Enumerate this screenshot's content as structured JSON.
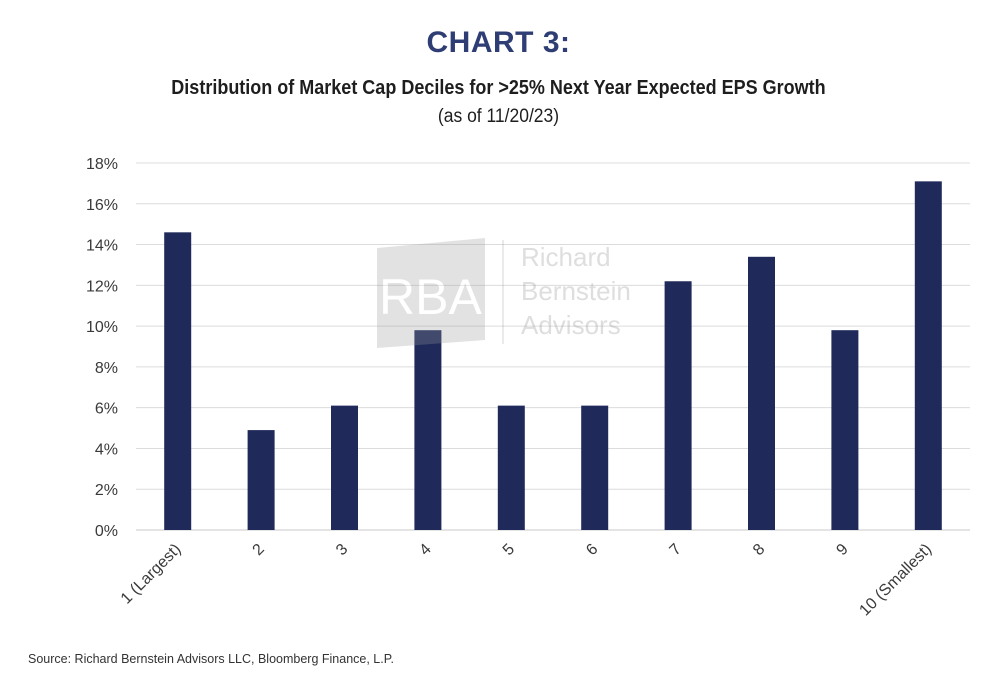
{
  "header": {
    "chart_label": "CHART 3:",
    "title": "Distribution of Market Cap Deciles for >25% Next Year Expected EPS Growth",
    "subtitle": "(as of 11/20/23)"
  },
  "watermark": {
    "logo_text": "RBA",
    "name_lines": [
      "Richard",
      "Bernstein",
      "Advisors"
    ]
  },
  "footer": {
    "source": "Source: Richard Bernstein Advisors LLC, Bloomberg Finance, L.P."
  },
  "chart_data": {
    "type": "bar",
    "title": "Distribution of Market Cap Deciles for >25% Next Year Expected EPS Growth",
    "subtitle": "(as of 11/20/23)",
    "categories": [
      "1 (Largest)",
      "2",
      "3",
      "4",
      "5",
      "6",
      "7",
      "8",
      "9",
      "10 (Smallest)"
    ],
    "values": [
      14.6,
      4.9,
      6.1,
      9.8,
      6.1,
      6.1,
      12.2,
      13.4,
      9.8,
      17.1
    ],
    "value_unit": "%",
    "ylim": [
      0,
      18
    ],
    "yticks": [
      "0%",
      "2%",
      "4%",
      "6%",
      "8%",
      "10%",
      "12%",
      "14%",
      "16%",
      "18%"
    ],
    "xlabel": "",
    "ylabel": "",
    "grid": true,
    "legend": "none",
    "bar_color": "#1f2a5a",
    "grid_color": "#dcdcdc"
  }
}
